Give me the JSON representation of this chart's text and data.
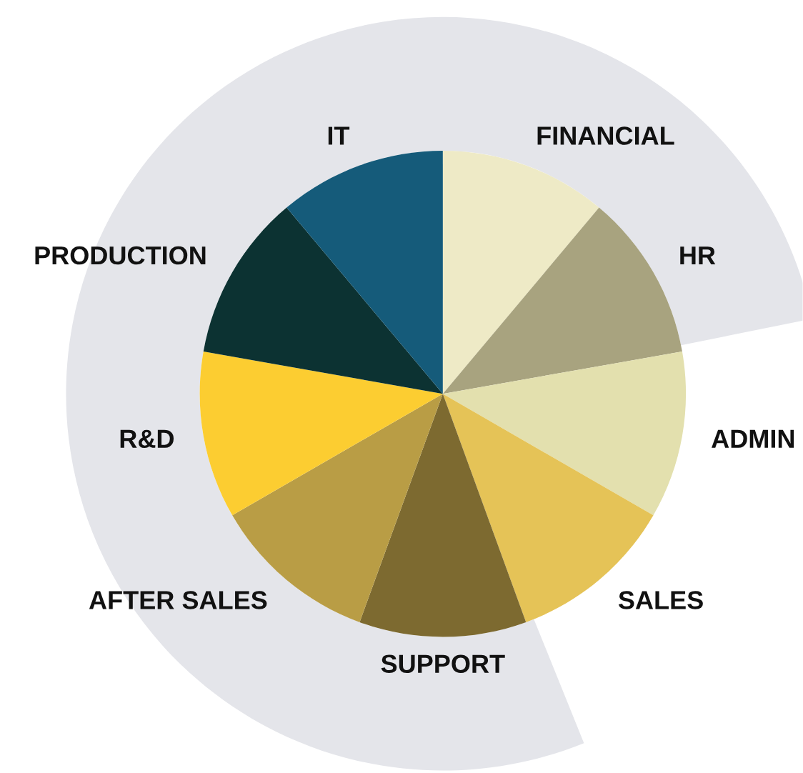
{
  "chart_data": {
    "type": "pie",
    "categories": [
      "FINANCIAL",
      "HR",
      "ADMIN",
      "SALES",
      "SUPPORT",
      "AFTER SALES",
      "R&D",
      "PRODUCTION",
      "IT"
    ],
    "values": [
      11.11,
      11.11,
      11.11,
      11.11,
      11.12,
      11.11,
      11.11,
      11.11,
      11.11
    ],
    "colors": [
      "#eeeac6",
      "#a8a37f",
      "#e3e0ae",
      "#e5c357",
      "#7d6a30",
      "#b99d45",
      "#fccd31",
      "#0c3232",
      "#155b7a"
    ],
    "legend": false
  }
}
